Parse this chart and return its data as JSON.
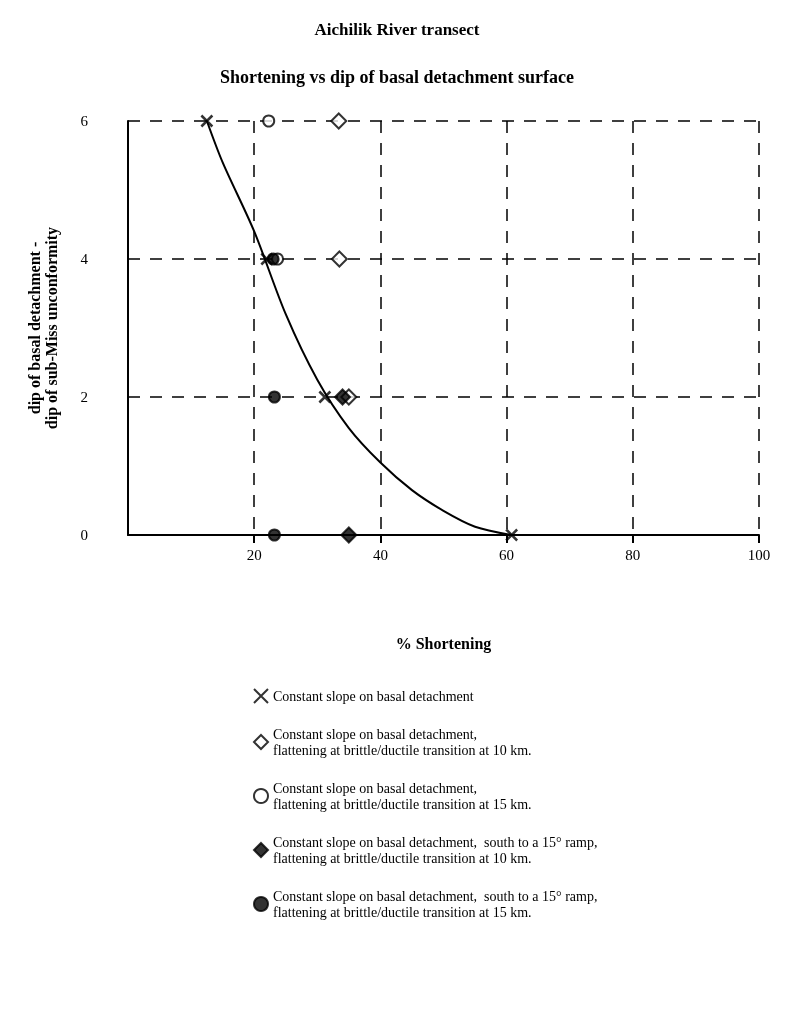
{
  "chart_data": {
    "type": "scatter",
    "title": "Aichilik River transect",
    "subtitle": "Shortening vs dip of basal detachment surface",
    "xlabel": "% Shortening",
    "ylabel": "dip of basal detachment -\ndip of sub-Miss unconformity",
    "xlim": [
      0,
      100
    ],
    "xticks": [
      20,
      40,
      60,
      80,
      100
    ],
    "ylim": [
      0,
      6
    ],
    "yticks": [
      0,
      2,
      4,
      6
    ],
    "grid": true,
    "legend": "bottom",
    "series": [
      {
        "name": "Constant slope on basal detachment",
        "color": "#000000",
        "marker": "cross",
        "x": [
          12.5,
          22,
          31.2,
          60.8
        ],
        "values": [
          6,
          4,
          2,
          0
        ]
      },
      {
        "name": "Constant slope on basal detachment,\nflattening at brittle/ductile transition at 10 km.",
        "color": "#000000",
        "marker": "diamond",
        "x": [
          33.4,
          33.5,
          35
        ],
        "values": [
          6,
          4,
          2
        ]
      },
      {
        "name": "Constant slope on basal detachment,\nflattening at brittle/ductile transition at 15 km.",
        "color": "#000000",
        "marker": "circle",
        "x": [
          22.3,
          23.7
        ],
        "values": [
          6,
          4
        ]
      },
      {
        "name": "Constant slope on basal detachment,  south to a 15° ramp,\nflattening at brittle/ductile transition at 10 km.",
        "color": "#000000",
        "marker": "diamond",
        "x": [
          34,
          35
        ],
        "values": [
          2,
          0
        ]
      },
      {
        "name": "Constant slope on basal detachment,  south to a 15° ramp,\nflattening at brittle/ductile transition at 15 km.",
        "color": "#000000",
        "marker": "circle",
        "x": [
          23,
          23.2,
          23.2
        ],
        "values": [
          4,
          2,
          0
        ]
      },
      {
        "type": "line",
        "color": "#000000",
        "marker": "none",
        "line_style": "solid",
        "x": [
          12.5,
          15,
          20,
          25,
          30,
          35,
          40,
          45,
          50,
          55,
          60.8
        ],
        "values": [
          6,
          5.4,
          4.4,
          3.2,
          2.25,
          1.55,
          1.05,
          0.65,
          0.35,
          0.12,
          0
        ]
      }
    ]
  }
}
